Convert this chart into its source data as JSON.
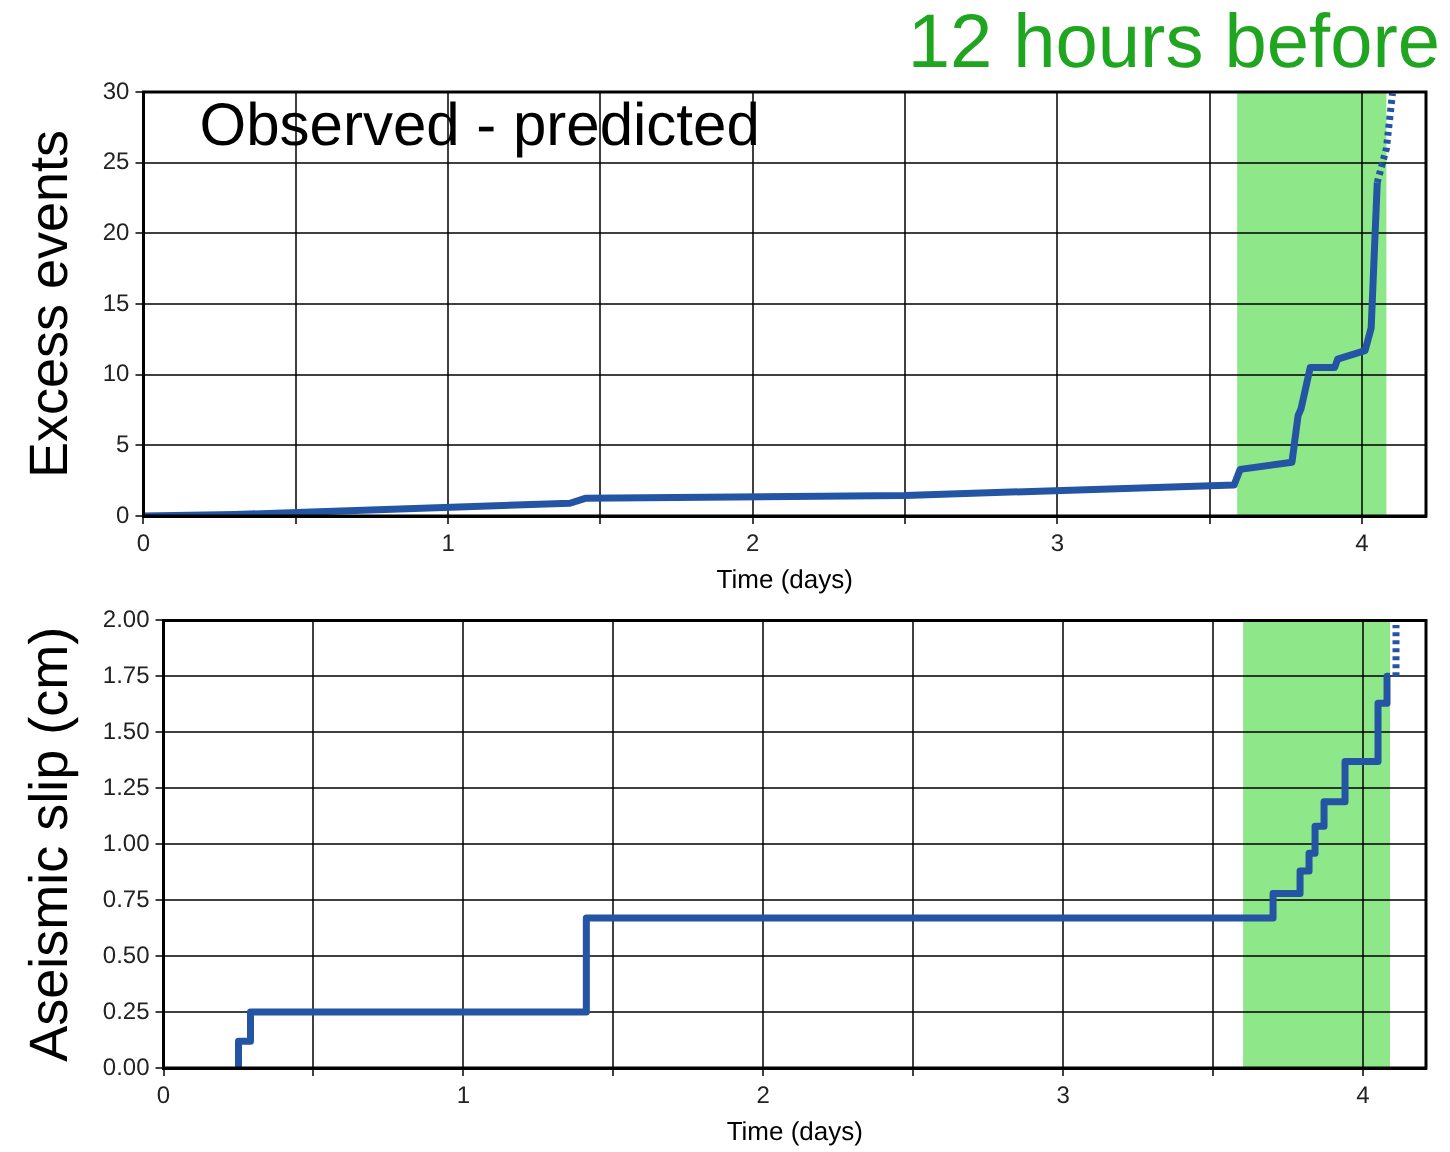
{
  "chart_data": [
    {
      "type": "line",
      "xlabel": "Time (days)",
      "ylabel": "Excess events",
      "annotations": [
        "Observed - predicted"
      ],
      "xlim": [
        0,
        4.21
      ],
      "xticks": [
        0,
        {
          "value": 0.5,
          "label": null
        },
        1,
        {
          "value": 1.5,
          "label": null
        },
        2,
        {
          "value": 2.5,
          "label": null
        },
        3,
        {
          "value": 3.5,
          "label": null
        },
        4
      ],
      "ylim": [
        0,
        30
      ],
      "yticks": [
        0,
        5,
        10,
        15,
        20,
        25,
        30
      ],
      "grid": true,
      "marker": "none",
      "bands": [
        {
          "axis": "x",
          "from": 3.59,
          "to": 4.08,
          "label": "12 hours before",
          "color": "#8ee88a"
        }
      ],
      "series": [
        {
          "color": "#2455a4",
          "line_style": "solid",
          "x": [
            0,
            0.3,
            1.4,
            1.45,
            2.5,
            3.58,
            3.6,
            3.77,
            3.79,
            3.8,
            3.83,
            3.91,
            3.92,
            4.01,
            4.03,
            4.05
          ],
          "values": [
            0,
            0.1,
            0.9,
            1.25,
            1.45,
            2.2,
            3.3,
            3.8,
            7.1,
            7.6,
            10.5,
            10.5,
            11.1,
            11.7,
            13.3,
            23.6
          ]
        },
        {
          "color": "#2455a4",
          "line_style": "dotted",
          "x": [
            4.05,
            4.08,
            4.1
          ],
          "values": [
            23.6,
            26,
            29.9
          ]
        }
      ]
    },
    {
      "type": "step",
      "xlabel": "Time (days)",
      "ylabel": "Aseismic slip (cm)",
      "xlim": [
        0,
        4.21
      ],
      "xticks": [
        0,
        {
          "value": 0.5,
          "label": null
        },
        1,
        {
          "value": 1.5,
          "label": null
        },
        2,
        {
          "value": 2.5,
          "label": null
        },
        3,
        {
          "value": 3.5,
          "label": null
        },
        4
      ],
      "ylim": [
        0,
        2
      ],
      "yticks": [
        {
          "value": 0,
          "label": "0.00"
        },
        0.25,
        {
          "value": 0.5,
          "label": "0.50"
        },
        0.75,
        {
          "value": 1,
          "label": "1.00"
        },
        1.25,
        {
          "value": 1.5,
          "label": "1.50"
        },
        1.75,
        {
          "value": 2,
          "label": "2.00"
        }
      ],
      "grid": true,
      "marker": "none",
      "bands": [
        {
          "axis": "x",
          "from": 3.6,
          "to": 4.09,
          "color": "#8ee88a"
        }
      ],
      "series": [
        {
          "color": "#2455a4",
          "line_style": "solid",
          "x": [
            0.25,
            0.25,
            0.29,
            1.41,
            3.7,
            3.79,
            3.82,
            3.84,
            3.87,
            3.94,
            4.05,
            4.08,
            4.09
          ],
          "values": [
            0,
            0.12,
            0.25,
            0.67,
            0.78,
            0.88,
            0.96,
            1.08,
            1.19,
            1.37,
            1.63,
            1.75,
            1.75
          ]
        },
        {
          "color": "#2455a4",
          "line_style": "dotted",
          "x": [
            4.11,
            4.11
          ],
          "values": [
            1.75,
            1.98
          ]
        }
      ]
    }
  ]
}
